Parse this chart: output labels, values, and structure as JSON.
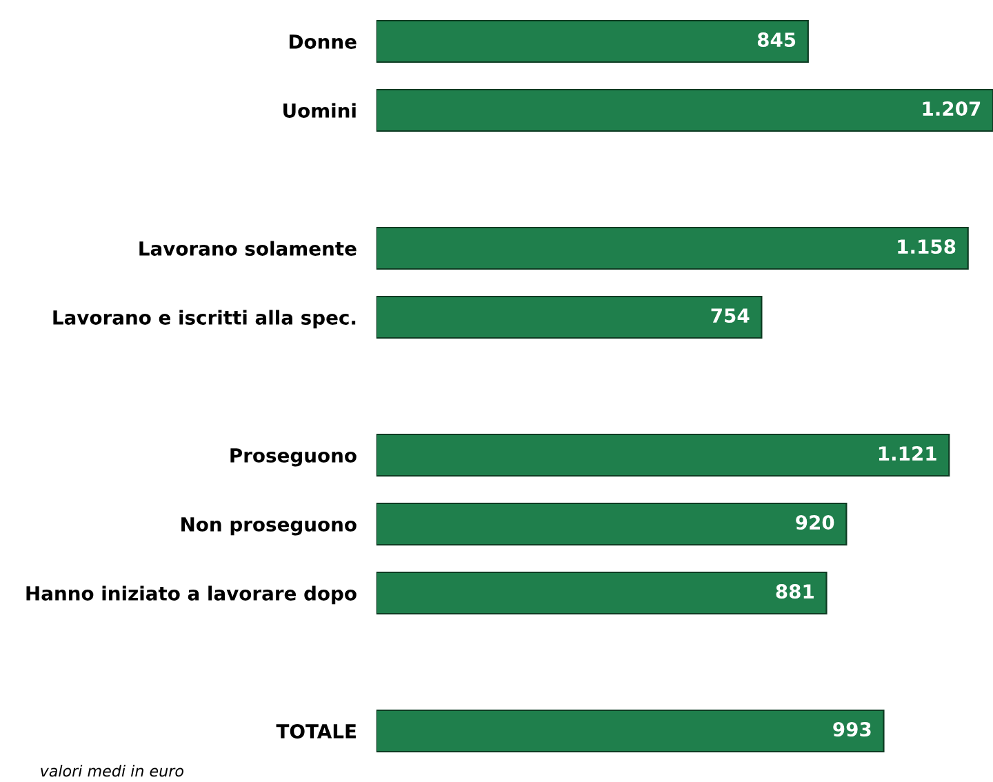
{
  "chart_data": {
    "type": "bar",
    "orientation": "horizontal",
    "categories": [
      "Donne",
      "Uomini",
      null,
      "Lavorano solamente",
      "Lavorano e iscritti alla spec.",
      null,
      "Proseguono",
      "Non proseguono",
      "Hanno iniziato a lavorare dopo",
      null,
      "TOTALE"
    ],
    "values": [
      845,
      1207,
      null,
      1158,
      754,
      null,
      1121,
      920,
      881,
      null,
      993
    ],
    "value_labels": [
      "845",
      "1.207",
      null,
      "1.158",
      "754",
      null,
      "1.121",
      "920",
      "881",
      null,
      "993"
    ],
    "color": "#1f7f4c",
    "tick_labels": "y",
    "grid": false,
    "annotations": [
      "valori medi in euro"
    ]
  }
}
